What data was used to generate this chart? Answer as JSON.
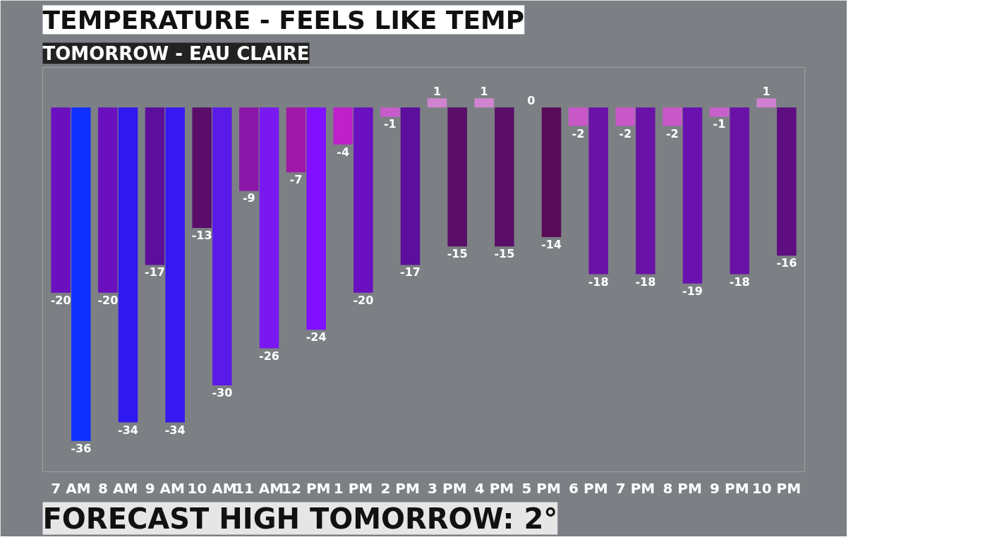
{
  "chart_data": {
    "type": "bar",
    "title": "TEMPERATURE - FEELS LIKE TEMP",
    "subtitle": "TOMORROW - EAU CLAIRE",
    "categories": [
      "7 AM",
      "8 AM",
      "9 AM",
      "10 AM",
      "11 AM",
      "12 PM",
      "1 PM",
      "2 PM",
      "3 PM",
      "4 PM",
      "5 PM",
      "6 PM",
      "7 PM",
      "8 PM",
      "9 PM",
      "10 PM"
    ],
    "series": [
      {
        "values": [
          -20,
          -20,
          -17,
          -13,
          -9,
          -7,
          -4,
          -1,
          1,
          1,
          0,
          -2,
          -2,
          -2,
          -1,
          1
        ],
        "colors": [
          "#6a10bf",
          "#6a10bf",
          "#5c0e9c",
          "#5a0e6a",
          "#8a17a8",
          "#a018a8",
          "#c020c8",
          "#c85ccc",
          "#d084d0",
          "#d084d0",
          "#d07ad0",
          "#c858c8",
          "#c858c8",
          "#c858c8",
          "#c860cc",
          "#d080d0"
        ]
      },
      {
        "values": [
          -36,
          -34,
          -34,
          -30,
          -26,
          -24,
          -20,
          -17,
          -15,
          -15,
          -14,
          -18,
          -18,
          -19,
          -18,
          -16
        ],
        "colors": [
          "#1030ff",
          "#3018f0",
          "#3818f0",
          "#5a1ae8",
          "#7a18f0",
          "#8010ff",
          "#6a10c0",
          "#5c0e9c",
          "#5a0e68",
          "#5a0e68",
          "#580c58",
          "#6a12a8",
          "#6a12a8",
          "#6a12b0",
          "#6a12a8",
          "#5e0e80"
        ]
      }
    ],
    "tick_labels": "x",
    "grid": false,
    "data_labels": true,
    "annotations": [
      "FORECAST HIGH TOMORROW: 2°"
    ]
  }
}
